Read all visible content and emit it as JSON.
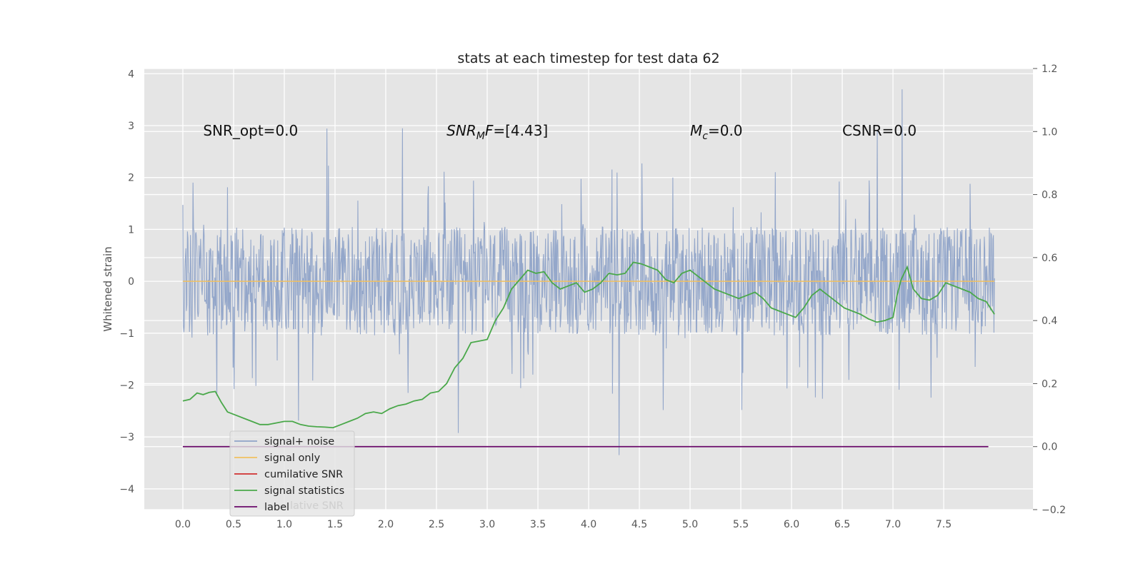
{
  "chart_data": {
    "type": "line",
    "title": "stats at each timestep for test data 62",
    "xlabel": "",
    "ylabel": "Whitened strain",
    "xlim": [
      -0.38,
      8.38
    ],
    "ylim": [
      -4.4,
      4.1
    ],
    "y2lim": [
      -0.2,
      1.2
    ],
    "xticks": [
      0.0,
      0.5,
      1.0,
      1.5,
      2.0,
      2.5,
      3.0,
      3.5,
      4.0,
      4.5,
      5.0,
      5.5,
      6.0,
      6.5,
      7.0,
      7.5
    ],
    "xtick_labels": [
      "0.0",
      "0.5",
      "1.0",
      "1.5",
      "2.0",
      "2.5",
      "3.0",
      "3.5",
      "4.0",
      "4.5",
      "5.0",
      "5.5",
      "6.0",
      "6.5",
      "7.0",
      "7.5"
    ],
    "yticks": [
      -4,
      -3,
      -2,
      -1,
      0,
      1,
      2,
      3,
      4
    ],
    "ytick_labels": [
      "−4",
      "−3",
      "−2",
      "−1",
      "0",
      "1",
      "2",
      "3",
      "4"
    ],
    "y2ticks": [
      -0.2,
      0.0,
      0.2,
      0.4,
      0.6,
      0.8,
      1.0,
      1.2
    ],
    "y2tick_labels": [
      "−0.2",
      "0.0",
      "0.2",
      "0.4",
      "0.6",
      "0.8",
      "1.0",
      "1.2"
    ],
    "grid": true,
    "legend_position": "lower-left",
    "annotations": [
      {
        "text": "SNR_opt=0.0",
        "x": 0.2,
        "y": 2.9
      },
      {
        "text": "SNR_MF=[4.43]",
        "x": 2.6,
        "y": 2.9
      },
      {
        "text": "M_c=0.0",
        "x": 5.0,
        "y": 2.9
      },
      {
        "text": "CSNR=0.0",
        "x": 6.5,
        "y": 2.9
      }
    ],
    "series": [
      {
        "name": "signal+ noise",
        "color": "#8fa3c8",
        "axis": "left",
        "x_range": [
          0.0,
          8.0
        ],
        "typical_min": -1.0,
        "typical_max": 1.0,
        "max": 3.7,
        "min": -3.35
      },
      {
        "name": "signal only",
        "color": "#f0c060",
        "axis": "left",
        "x": [
          0.0,
          8.0
        ],
        "values": [
          0.0,
          0.0
        ]
      },
      {
        "name": "cumilative SNR",
        "color": "#d03030",
        "axis": "right"
      },
      {
        "name": "signal statistics",
        "color": "#4aa84a",
        "axis": "right",
        "x": [
          0.0,
          0.07,
          0.14,
          0.2,
          0.26,
          0.32,
          0.38,
          0.44,
          0.52,
          0.6,
          0.68,
          0.76,
          0.84,
          0.92,
          1.0,
          1.08,
          1.16,
          1.24,
          1.32,
          1.4,
          1.48,
          1.56,
          1.64,
          1.72,
          1.8,
          1.88,
          1.96,
          2.04,
          2.12,
          2.2,
          2.28,
          2.36,
          2.44,
          2.52,
          2.6,
          2.68,
          2.76,
          2.84,
          2.92,
          3.0,
          3.08,
          3.16,
          3.24,
          3.32,
          3.4,
          3.48,
          3.56,
          3.64,
          3.72,
          3.8,
          3.88,
          3.96,
          4.04,
          4.12,
          4.2,
          4.28,
          4.36,
          4.44,
          4.52,
          4.6,
          4.68,
          4.76,
          4.84,
          4.92,
          5.0,
          5.08,
          5.16,
          5.24,
          5.32,
          5.4,
          5.48,
          5.56,
          5.64,
          5.72,
          5.8,
          5.88,
          5.96,
          6.04,
          6.12,
          6.2,
          6.28,
          6.36,
          6.44,
          6.52,
          6.6,
          6.68,
          6.76,
          6.84,
          6.92,
          7.0,
          7.04,
          7.08,
          7.14,
          7.2,
          7.28,
          7.36,
          7.44,
          7.52,
          7.6,
          7.68,
          7.76,
          7.84,
          7.92,
          8.0
        ],
        "values": [
          0.145,
          0.15,
          0.17,
          0.165,
          0.172,
          0.175,
          0.14,
          0.11,
          0.1,
          0.09,
          0.08,
          0.07,
          0.07,
          0.075,
          0.08,
          0.08,
          0.07,
          0.065,
          0.063,
          0.062,
          0.06,
          0.07,
          0.08,
          0.09,
          0.105,
          0.11,
          0.105,
          0.12,
          0.13,
          0.135,
          0.145,
          0.15,
          0.17,
          0.175,
          0.2,
          0.25,
          0.28,
          0.33,
          0.335,
          0.34,
          0.4,
          0.44,
          0.5,
          0.53,
          0.56,
          0.55,
          0.555,
          0.52,
          0.5,
          0.51,
          0.52,
          0.49,
          0.5,
          0.52,
          0.55,
          0.545,
          0.55,
          0.585,
          0.58,
          0.57,
          0.56,
          0.53,
          0.52,
          0.55,
          0.56,
          0.54,
          0.52,
          0.5,
          0.49,
          0.48,
          0.47,
          0.48,
          0.49,
          0.47,
          0.44,
          0.43,
          0.42,
          0.41,
          0.44,
          0.48,
          0.5,
          0.48,
          0.46,
          0.44,
          0.43,
          0.42,
          0.405,
          0.395,
          0.4,
          0.41,
          0.48,
          0.53,
          0.57,
          0.5,
          0.47,
          0.465,
          0.48,
          0.52,
          0.51,
          0.5,
          0.49,
          0.47,
          0.46,
          0.42
        ]
      },
      {
        "name": "label",
        "color": "#6a0a6a",
        "axis": "right",
        "x": [
          0.0,
          7.94
        ],
        "values": [
          0.0,
          0.0
        ]
      }
    ],
    "legend_overlap_text": "lative SNR"
  }
}
